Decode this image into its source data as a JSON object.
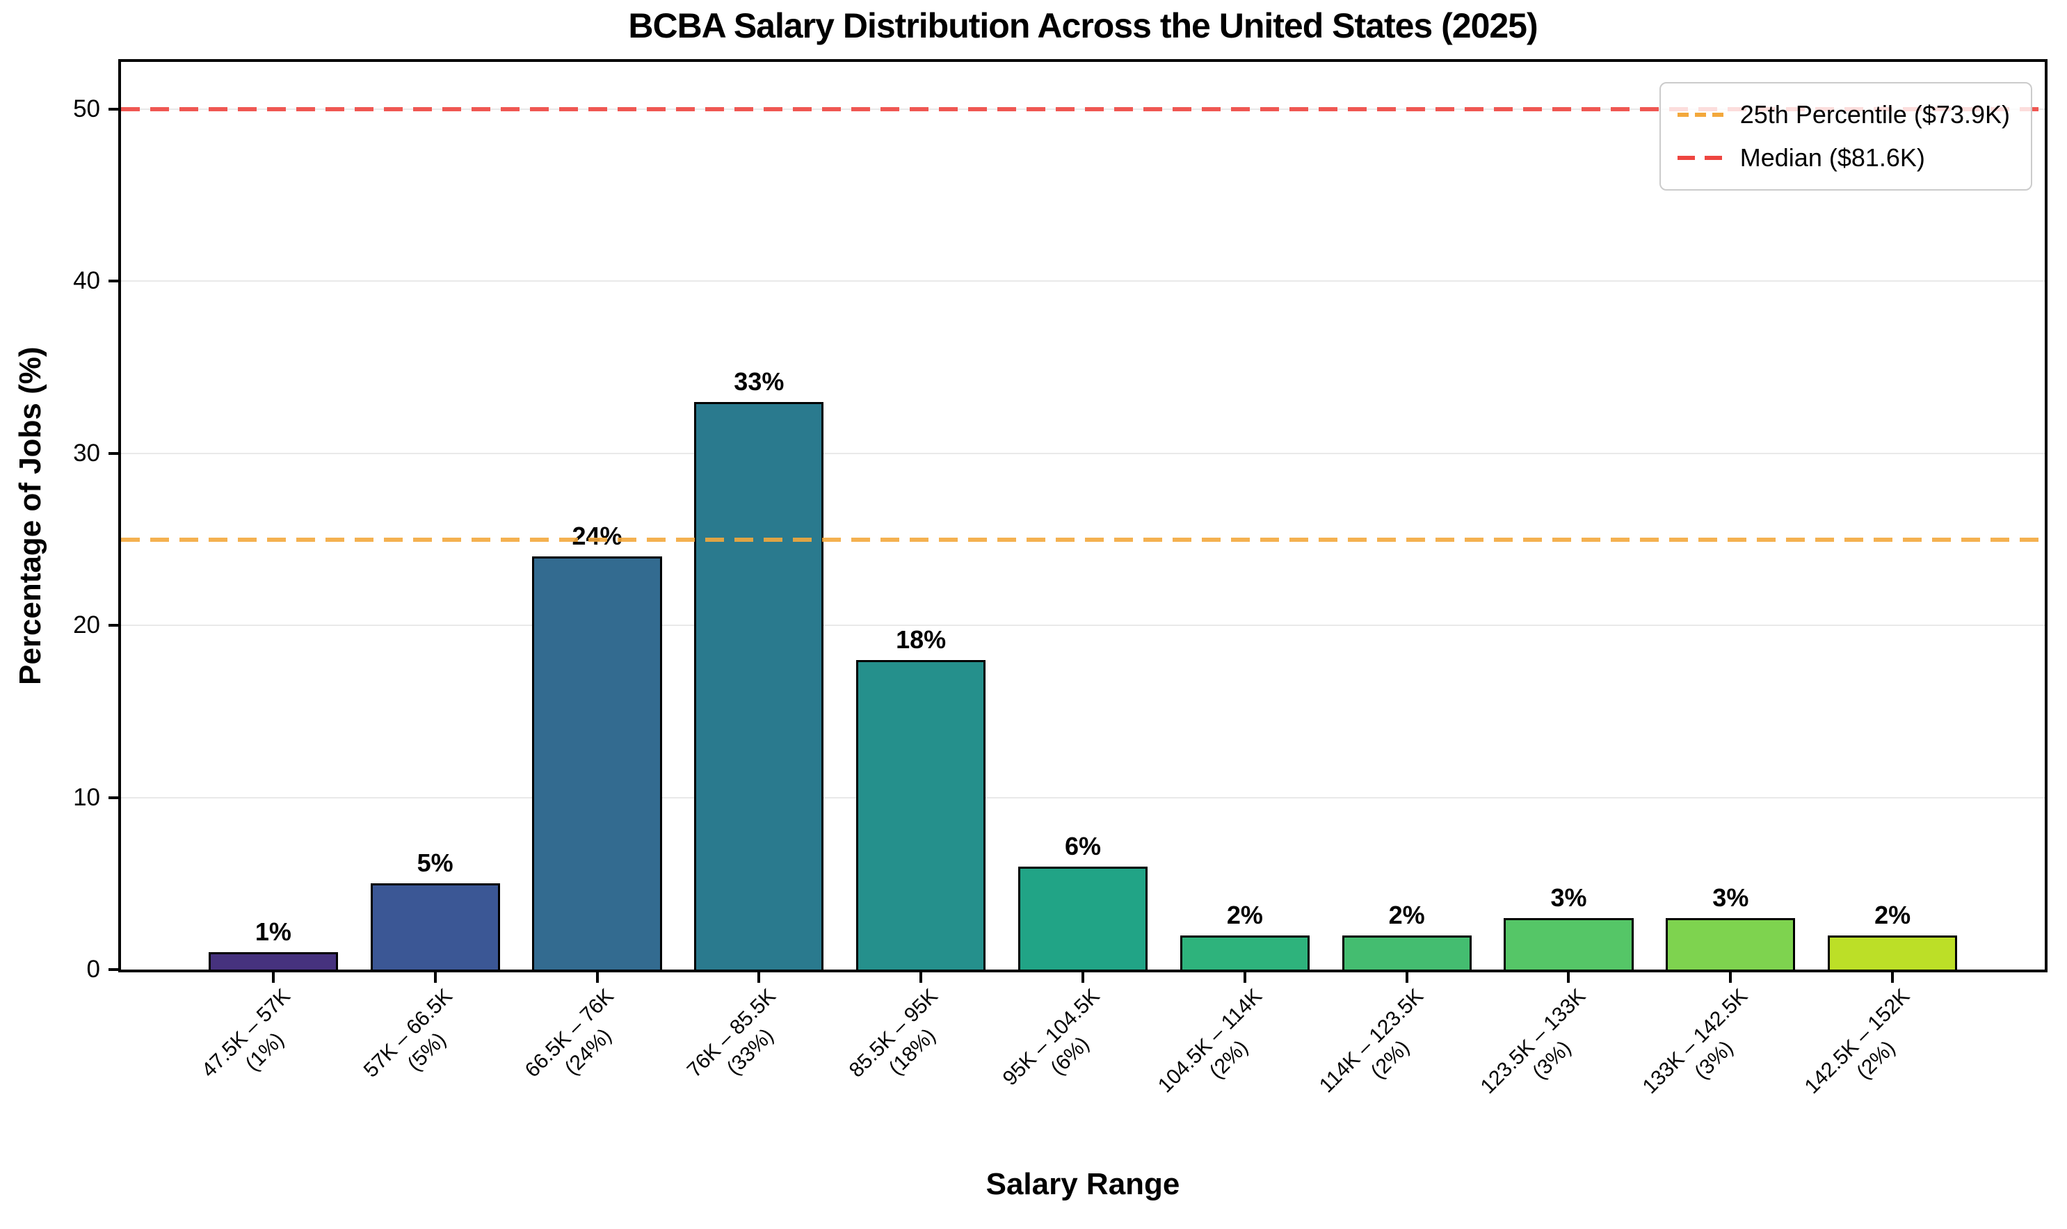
{
  "figure": {
    "title": "BCBA Salary Distribution Across the United States (2025)",
    "xlabel": "Salary Range",
    "ylabel": "Percentage of Jobs (%)"
  },
  "legend": {
    "items": [
      {
        "label": "25th Percentile ($73.9K)",
        "color": "#f3a83c",
        "style": "dashed"
      },
      {
        "label": "Median ($81.6K)",
        "color": "#ee4540",
        "style": "dashed"
      }
    ],
    "position": "upper right"
  },
  "chart_data": {
    "type": "bar",
    "title": "BCBA Salary Distribution Across the United States (2025)",
    "xlabel": "Salary Range",
    "ylabel": "Percentage of Jobs (%)",
    "ylim": [
      0,
      52.75
    ],
    "yticks": [
      0,
      10,
      20,
      30,
      40,
      50
    ],
    "grid": "horizontal",
    "grid_color": "#e9e9e9",
    "categories": [
      "47.5K – 57K",
      "57K – 66.5K",
      "66.5K – 76K",
      "76K – 85.5K",
      "85.5K – 95K",
      "95K – 104.5K",
      "104.5K – 114K",
      "114K – 123.5K",
      "123.5K – 133K",
      "133K – 142.5K",
      "142.5K – 152K"
    ],
    "category_sublabels": [
      "(1%)",
      "(5%)",
      "(24%)",
      "(33%)",
      "(18%)",
      "(6%)",
      "(2%)",
      "(2%)",
      "(3%)",
      "(3%)",
      "(2%)"
    ],
    "values": [
      1,
      5,
      24,
      33,
      18,
      6,
      2,
      2,
      3,
      3,
      2
    ],
    "bar_value_labels": [
      "1%",
      "5%",
      "24%",
      "33%",
      "18%",
      "6%",
      "2%",
      "2%",
      "3%",
      "3%",
      "2%"
    ],
    "bar_colors": [
      "#46327e",
      "#3b5795",
      "#336b90",
      "#2a7a8e",
      "#25908c",
      "#21a486",
      "#2eb37c",
      "#44bd70",
      "#55c667",
      "#7ed34f",
      "#bcdf27"
    ],
    "bar_edge_color": "#000000",
    "reference_lines": [
      {
        "label": "25th Percentile ($73.9K)",
        "y": 25,
        "color": "#f3a83c",
        "style": "dashed"
      },
      {
        "label": "Median ($81.6K)",
        "y": 50,
        "color": "#ee4540",
        "style": "dashed"
      }
    ],
    "legend_position": "upper right"
  }
}
